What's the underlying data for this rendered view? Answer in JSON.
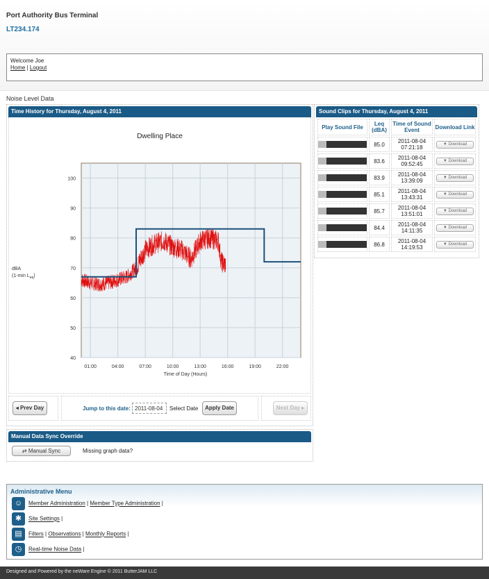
{
  "header": {
    "title": "Port Authority Bus Terminal",
    "site_id": "LT234.174"
  },
  "welcome": {
    "text": "Welcome Joe",
    "home": "Home",
    "sep": " | ",
    "logout": "Logout"
  },
  "section_title": "Noise Level Data",
  "time_history": {
    "bar_title": "Time History for Thursday, August 4, 2011",
    "chart_data": {
      "type": "line",
      "title": "Dwelling Place",
      "ylabel": "dBA",
      "ylabel_sub": "(1-min L",
      "ylabel_sub2": "eq",
      "ylabel_sub3": ")",
      "xlabel": "Time of Day (Hours)",
      "xlim": [
        0,
        24
      ],
      "ylim": [
        40,
        105
      ],
      "y_ticks": [
        40,
        50,
        60,
        70,
        80,
        90,
        100
      ],
      "x_ticks": [
        {
          "v": 1,
          "label": "01:00"
        },
        {
          "v": 4,
          "label": "04:00"
        },
        {
          "v": 7,
          "label": "07:00"
        },
        {
          "v": 10,
          "label": "10:00"
        },
        {
          "v": 13,
          "label": "13:00"
        },
        {
          "v": 16,
          "label": "16:00"
        },
        {
          "v": 19,
          "label": "19:00"
        },
        {
          "v": 22,
          "label": "22:00"
        }
      ],
      "grid": true,
      "criterion": {
        "color": "#1a4f7a",
        "x": [
          0,
          6,
          6,
          20,
          20,
          24
        ],
        "y": [
          67,
          67,
          83,
          83,
          72,
          72
        ]
      },
      "measured": {
        "color": "#e01010",
        "x_start": 0,
        "x_end": 15.8,
        "base": [
          [
            0,
            66
          ],
          [
            1,
            65
          ],
          [
            2,
            64.5
          ],
          [
            3,
            65
          ],
          [
            4,
            66
          ],
          [
            5,
            67
          ],
          [
            6,
            70
          ],
          [
            7,
            76
          ],
          [
            8,
            78
          ],
          [
            9,
            79
          ],
          [
            10,
            77
          ],
          [
            11,
            76
          ],
          [
            12,
            73
          ],
          [
            12.5,
            76
          ],
          [
            13,
            79
          ],
          [
            14,
            80
          ],
          [
            15,
            79
          ],
          [
            15.3,
            72
          ],
          [
            15.8,
            71
          ]
        ]
      }
    },
    "nav": {
      "prev": "Prev Day",
      "jump_label": "Jump to this date:",
      "date_value": "2011-08-04",
      "select_date": "Select Date",
      "apply": "Apply Date",
      "next": "Next Day"
    }
  },
  "sync": {
    "bar_title": "Manual Data Sync Override",
    "button": "Manual Sync",
    "note": "Missing graph data?"
  },
  "clips": {
    "bar_title": "Sound Clips for Thursday, August 4, 2011",
    "headers": {
      "play": "Play Sound File",
      "leq": "Leq\n(dBA)",
      "time": "Time of Sound\nEvent",
      "download": "Download Link"
    },
    "download_label": "Download",
    "rows": [
      {
        "leq": "85.0",
        "date": "2011-08-04",
        "time": "07:21:18"
      },
      {
        "leq": "83.6",
        "date": "2011-08-04",
        "time": "09:52:45"
      },
      {
        "leq": "83.9",
        "date": "2011-08-04",
        "time": "13:39:09"
      },
      {
        "leq": "85.1",
        "date": "2011-08-04",
        "time": "13:43:31"
      },
      {
        "leq": "85.7",
        "date": "2011-08-04",
        "time": "13:51:01"
      },
      {
        "leq": "84.4",
        "date": "2011-08-04",
        "time": "14:11:35"
      },
      {
        "leq": "86.8",
        "date": "2011-08-04",
        "time": "14:19:53"
      }
    ]
  },
  "admin": {
    "title": "Administrative Menu",
    "rows": [
      {
        "icon": "user-admin-icon",
        "glyph": "☺",
        "links": [
          "Member Administration",
          "Member Type Administration"
        ]
      },
      {
        "icon": "settings-icon",
        "glyph": "✱",
        "links": [
          "Site Settings"
        ]
      },
      {
        "icon": "filters-icon",
        "glyph": "▤",
        "links": [
          "Filters",
          "Observations",
          "Monthly Reports"
        ]
      },
      {
        "icon": "realtime-icon",
        "glyph": "◷",
        "links": [
          "Real-time Noise Data"
        ]
      }
    ]
  },
  "footer": "Designed and Powered by the neWare Engine © 2011 ButterJAM LLC"
}
